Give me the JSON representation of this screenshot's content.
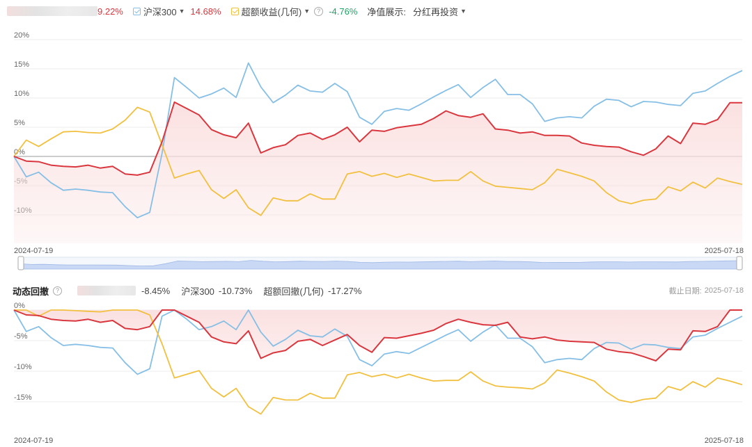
{
  "top_legend": {
    "fund_value": "9.22%",
    "benchmark_name": "沪深300",
    "benchmark_value": "14.68%",
    "excess_name": "超额收益(几何)",
    "excess_value": "-4.76%",
    "nav_label": "净值展示:",
    "nav_option": "分红再投资"
  },
  "drawdown_legend": {
    "title": "动态回撤",
    "fund_value": "-8.45%",
    "benchmark_name": "沪深300",
    "benchmark_value": "-10.73%",
    "excess_name": "超额回撤(几何)",
    "excess_value": "-17.27%",
    "deadline_label": "截止日期:",
    "deadline_value": "2025-07-18"
  },
  "date_range": {
    "start": "2024-07-19",
    "end": "2025-07-18"
  },
  "colors": {
    "fund": "#d9363e",
    "benchmark": "#86bfe6",
    "excess": "#f2c03f",
    "area": "#fbe1e1"
  },
  "chart_data": [
    {
      "type": "line",
      "title": "",
      "x_range": [
        "2024-07-19",
        "2025-07-18"
      ],
      "ylim": [
        -15,
        20
      ],
      "yticks": [
        "20%",
        "15%",
        "10%",
        "5%",
        "0%",
        "-5%",
        "-10%"
      ],
      "ytick_values": [
        20,
        15,
        10,
        5,
        0,
        -5,
        -10
      ],
      "series": [
        {
          "key": "fund",
          "name": "",
          "values": [
            0,
            -0.8,
            -0.9,
            -1.5,
            -1.7,
            -1.8,
            -1.5,
            -2.0,
            -1.7,
            -3.0,
            -3.2,
            -2.7,
            2.5,
            9.3,
            8.2,
            7.1,
            4.6,
            3.7,
            3.2,
            5.7,
            0.6,
            1.5,
            2.0,
            3.6,
            4.0,
            2.9,
            3.7,
            5.0,
            2.5,
            4.5,
            4.3,
            4.9,
            5.2,
            5.5,
            6.5,
            7.8,
            7.0,
            6.7,
            7.3,
            4.7,
            4.5,
            4.0,
            4.2,
            3.6,
            3.6,
            3.5,
            2.3,
            1.9,
            1.7,
            1.6,
            0.8,
            0.2,
            1.3,
            3.5,
            2.2,
            5.7,
            5.5,
            6.3,
            9.2,
            9.2
          ]
        },
        {
          "key": "benchmark",
          "name": "沪深300",
          "values": [
            0,
            -3.5,
            -2.7,
            -4.5,
            -5.8,
            -5.6,
            -5.8,
            -6.1,
            -6.2,
            -8.6,
            -10.5,
            -9.6,
            0.5,
            13.5,
            11.8,
            10.0,
            10.7,
            11.7,
            10.1,
            16.0,
            11.9,
            9.2,
            10.5,
            12.2,
            11.2,
            11.0,
            12.5,
            11.1,
            6.7,
            5.5,
            7.7,
            8.2,
            7.9,
            9.0,
            10.2,
            11.3,
            12.3,
            10.1,
            11.8,
            13.2,
            10.6,
            10.6,
            9.0,
            6.0,
            6.6,
            6.8,
            6.6,
            8.6,
            9.8,
            9.6,
            8.5,
            9.4,
            9.3,
            8.9,
            8.7,
            10.8,
            11.2,
            12.5,
            13.7,
            14.7
          ]
        },
        {
          "key": "excess",
          "name": "超额收益(几何)",
          "values": [
            0,
            2.8,
            1.7,
            3.0,
            4.2,
            4.3,
            4.1,
            4.0,
            4.7,
            6.2,
            8.4,
            7.6,
            2.0,
            -3.7,
            -3.0,
            -2.4,
            -5.7,
            -7.2,
            -5.7,
            -8.8,
            -10.1,
            -7.1,
            -7.6,
            -7.6,
            -6.4,
            -7.3,
            -7.3,
            -3.0,
            -2.6,
            -3.4,
            -2.9,
            -3.6,
            -3.0,
            -3.6,
            -4.2,
            -4.1,
            -4.1,
            -2.6,
            -4.2,
            -5.1,
            -5.3,
            -5.5,
            -5.7,
            -4.5,
            -2.2,
            -2.8,
            -3.4,
            -4.2,
            -6.2,
            -7.6,
            -8.1,
            -7.5,
            -7.3,
            -5.2,
            -5.9,
            -4.4,
            -5.4,
            -3.7,
            -4.3,
            -4.8
          ]
        }
      ]
    },
    {
      "type": "line",
      "title": "",
      "x_range": [
        "2024-07-19",
        "2025-07-18"
      ],
      "ylim": [
        -18,
        0
      ],
      "yticks": [
        "0%",
        "-5%",
        "-10%",
        "-15%"
      ],
      "ytick_values": [
        0,
        -5,
        -10,
        -15
      ],
      "series": [
        {
          "key": "fund",
          "name": "",
          "values": [
            0,
            -0.8,
            -0.9,
            -1.5,
            -1.7,
            -1.8,
            -1.5,
            -2.0,
            -1.7,
            -3.0,
            -3.2,
            -2.7,
            0,
            0,
            -1.0,
            -2.0,
            -4.4,
            -5.2,
            -5.5,
            -3.4,
            -7.9,
            -7.0,
            -6.6,
            -5.1,
            -4.8,
            -5.8,
            -4.9,
            -4.0,
            -5.8,
            -6.9,
            -4.5,
            -4.6,
            -4.2,
            -3.8,
            -3.3,
            -2.2,
            -1.5,
            -2.0,
            -2.4,
            -2.5,
            -2.0,
            -4.4,
            -4.7,
            -4.4,
            -4.9,
            -5.1,
            -5.2,
            -5.3,
            -6.4,
            -6.8,
            -7.0,
            -7.6,
            -8.3,
            -6.4,
            -6.5,
            -3.4,
            -3.5,
            -2.7,
            0,
            0
          ]
        },
        {
          "key": "benchmark",
          "name": "沪深300",
          "values": [
            0,
            -3.5,
            -2.7,
            -4.5,
            -5.8,
            -5.6,
            -5.8,
            -6.1,
            -6.2,
            -8.6,
            -10.5,
            -9.6,
            -1.0,
            0,
            -1.5,
            -3.2,
            -2.7,
            -1.8,
            -3.2,
            0,
            -3.6,
            -5.9,
            -4.8,
            -3.3,
            -4.2,
            -4.4,
            -3.1,
            -4.3,
            -8.1,
            -9.1,
            -7.2,
            -6.8,
            -7.1,
            -6.1,
            -5.1,
            -4.1,
            -3.2,
            -5.1,
            -3.6,
            -2.4,
            -4.6,
            -4.6,
            -6.0,
            -8.6,
            -8.1,
            -7.9,
            -8.1,
            -6.3,
            -5.3,
            -5.4,
            -6.4,
            -5.6,
            -5.7,
            -6.1,
            -6.3,
            -4.4,
            -4.1,
            -3.0,
            -2.0,
            -1.0
          ]
        },
        {
          "key": "excess",
          "name": "超额回撤(几何)",
          "values": [
            0,
            0,
            -1.0,
            0,
            0,
            -0.1,
            -0.2,
            -0.3,
            0,
            0,
            0,
            -0.8,
            -5.5,
            -11.1,
            -10.5,
            -9.9,
            -12.8,
            -14.2,
            -12.8,
            -15.8,
            -17.0,
            -14.3,
            -14.7,
            -14.7,
            -13.6,
            -14.4,
            -14.4,
            -10.6,
            -10.2,
            -10.9,
            -10.5,
            -11.1,
            -10.5,
            -11.1,
            -11.6,
            -11.5,
            -11.5,
            -10.1,
            -11.6,
            -12.4,
            -12.6,
            -12.7,
            -12.9,
            -11.9,
            -9.8,
            -10.3,
            -10.9,
            -11.6,
            -13.4,
            -14.7,
            -15.1,
            -14.6,
            -14.4,
            -12.5,
            -13.1,
            -11.7,
            -12.6,
            -11.1,
            -11.6,
            -12.2
          ]
        }
      ]
    }
  ]
}
